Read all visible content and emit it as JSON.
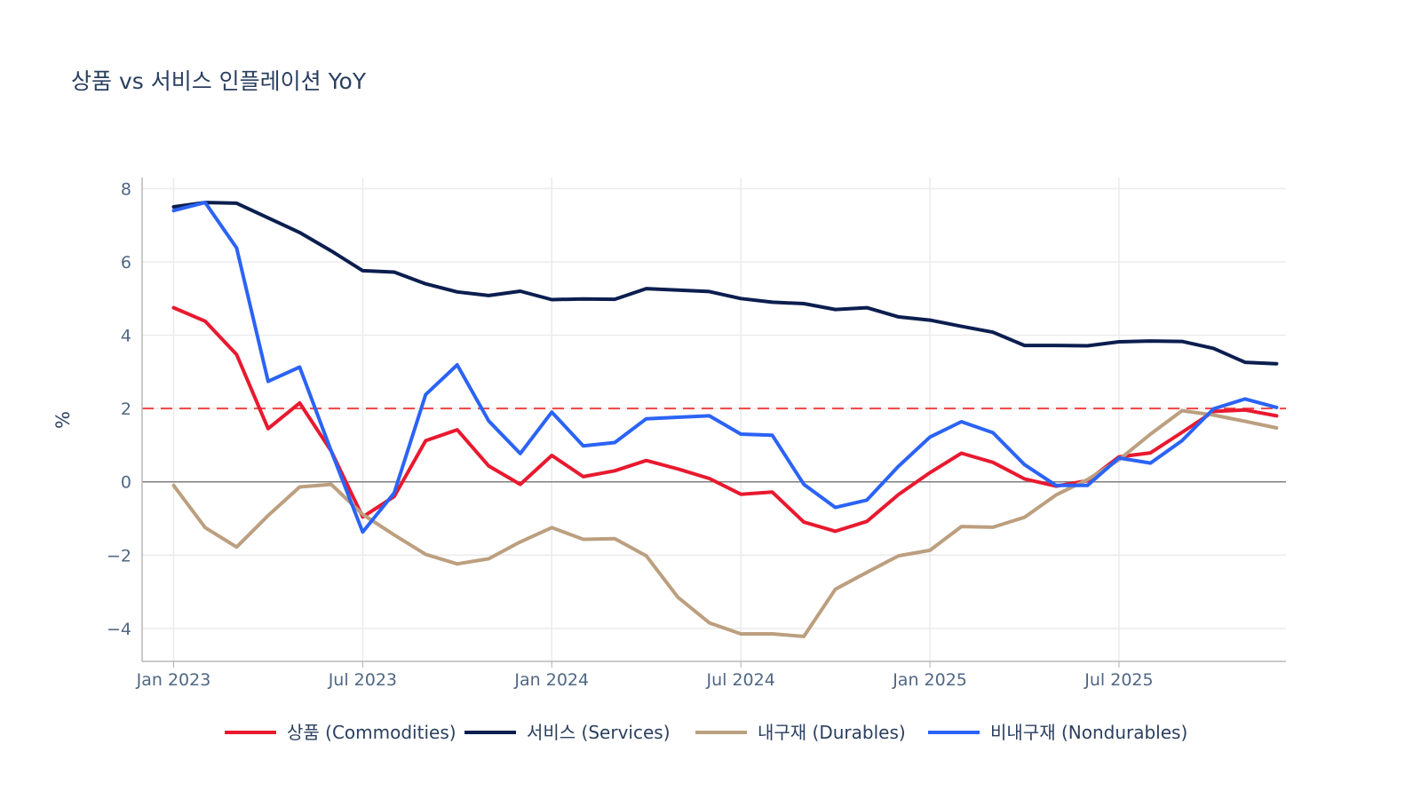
{
  "chart_data": {
    "type": "line",
    "title": "상품 vs 서비스 인플레이션 YoY",
    "xlabel": "",
    "ylabel": "%",
    "ylim": [
      -4.9,
      8.3
    ],
    "yticks": [
      8,
      6,
      4,
      2,
      0,
      -2,
      -4
    ],
    "ytick_labels": [
      "8",
      "6",
      "4",
      "2",
      "0",
      "−2",
      "−4"
    ],
    "x_start": "2022-12",
    "x_range": [
      -1,
      35.3
    ],
    "xticks": [
      {
        "label": "Jan 2023",
        "index": 0
      },
      {
        "label": "Jul 2023",
        "index": 6
      },
      {
        "label": "Jan 2024",
        "index": 12
      },
      {
        "label": "Jul 2024",
        "index": 18
      },
      {
        "label": "Jan 2025",
        "index": 24
      },
      {
        "label": "Jul 2025",
        "index": 30
      }
    ],
    "reference_line": {
      "value": 2,
      "color": "#ef4444",
      "style": "dashed"
    },
    "zero_line": {
      "value": 0,
      "color": "#7f7f7f"
    },
    "grid": true,
    "legend_position": "bottom",
    "series": [
      {
        "name": "상품 (Commodities)",
        "color": "#e8192f",
        "values": [
          4.75,
          4.38,
          3.47,
          1.45,
          2.15,
          0.84,
          -0.96,
          -0.4,
          1.12,
          1.42,
          0.43,
          -0.07,
          0.72,
          0.14,
          0.3,
          0.58,
          0.35,
          0.09,
          -0.34,
          -0.28,
          -1.1,
          -1.35,
          -1.08,
          -0.35,
          0.25,
          0.78,
          0.53,
          0.08,
          -0.12,
          0.03,
          0.68,
          0.79,
          1.35,
          1.92,
          1.96,
          1.8
        ]
      },
      {
        "name": "서비스 (Services)",
        "color": "#0b1e4f",
        "values": [
          7.5,
          7.62,
          7.6,
          7.2,
          6.8,
          6.3,
          5.76,
          5.72,
          5.4,
          5.18,
          5.08,
          5.2,
          4.97,
          4.99,
          4.98,
          5.27,
          5.23,
          5.19,
          5.0,
          4.9,
          4.86,
          4.7,
          4.75,
          4.5,
          4.41,
          4.24,
          4.08,
          3.72,
          3.72,
          3.71,
          3.82,
          3.84,
          3.83,
          3.64,
          3.26,
          3.22
        ]
      },
      {
        "name": "내구재 (Durables)",
        "color": "#bc9f7f",
        "values": [
          -0.1,
          -1.25,
          -1.78,
          -0.92,
          -0.14,
          -0.07,
          -0.89,
          -1.45,
          -1.98,
          -2.24,
          -2.1,
          -1.64,
          -1.25,
          -1.57,
          -1.55,
          -2.02,
          -3.15,
          -3.85,
          -4.15,
          -4.15,
          -4.22,
          -2.93,
          -2.47,
          -2.02,
          -1.87,
          -1.22,
          -1.24,
          -0.97,
          -0.36,
          0.06,
          0.6,
          1.3,
          1.94,
          1.82,
          1.65,
          1.47
        ]
      },
      {
        "name": "비내구재 (Nondurables)",
        "color": "#2b63f5",
        "values": [
          7.4,
          7.62,
          6.38,
          2.74,
          3.13,
          0.84,
          -1.37,
          -0.3,
          2.38,
          3.19,
          1.66,
          0.77,
          1.9,
          0.98,
          1.07,
          1.72,
          1.76,
          1.8,
          1.3,
          1.27,
          -0.07,
          -0.7,
          -0.5,
          0.42,
          1.22,
          1.64,
          1.34,
          0.47,
          -0.1,
          -0.1,
          0.65,
          0.51,
          1.12,
          1.99,
          2.26,
          2.03
        ]
      }
    ]
  }
}
